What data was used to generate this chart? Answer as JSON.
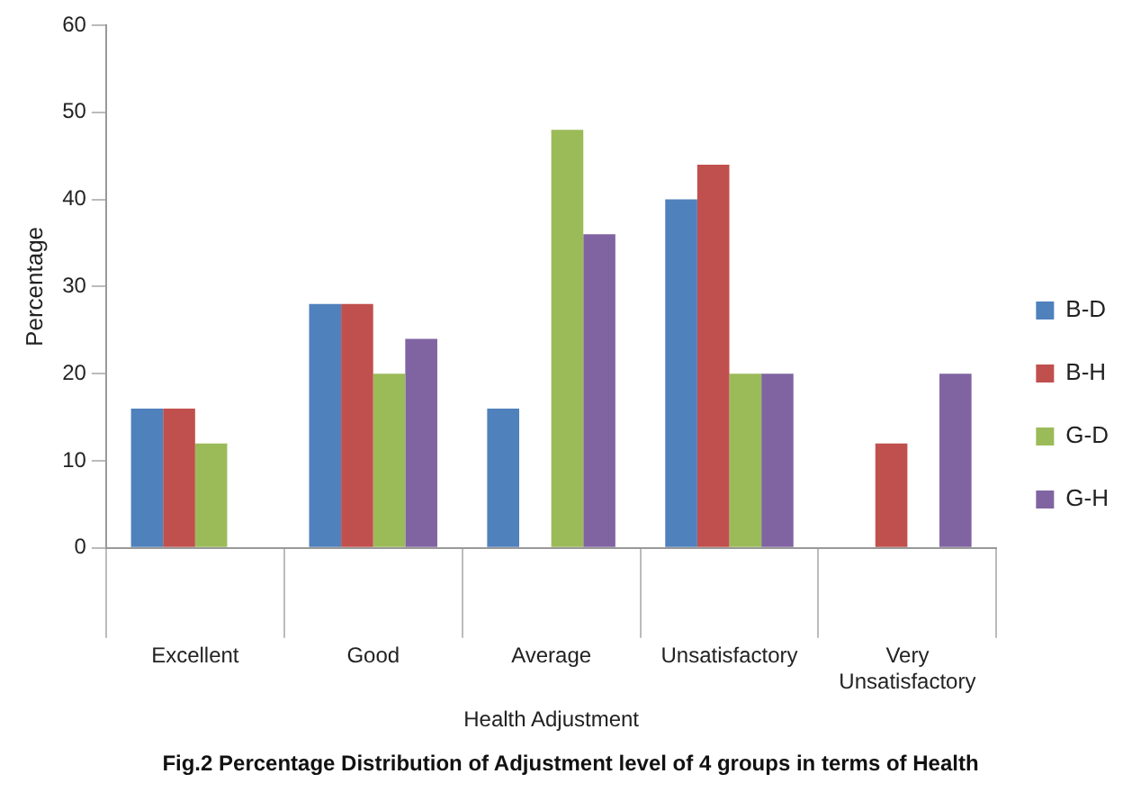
{
  "chart_data": {
    "type": "bar",
    "title": "Fig.2 Percentage Distribution of Adjustment level of 4 groups in terms of Health",
    "xlabel": "Health Adjustment",
    "ylabel": "Percentage",
    "categories": [
      "Excellent",
      "Good",
      "Average",
      "Unsatisfactory",
      "Very Unsatisfactory"
    ],
    "series": [
      {
        "name": "B-D",
        "color": "#4f81bd",
        "values": [
          16,
          28,
          16,
          40,
          0
        ]
      },
      {
        "name": "B-H",
        "color": "#c0504d",
        "values": [
          16,
          28,
          0,
          44,
          12
        ]
      },
      {
        "name": "G-D",
        "color": "#9bbb59",
        "values": [
          12,
          20,
          48,
          20,
          0
        ]
      },
      {
        "name": "G-H",
        "color": "#8064a2",
        "values": [
          0,
          24,
          36,
          20,
          20
        ]
      }
    ],
    "ylim": [
      0,
      60
    ],
    "yticks": [
      0,
      10,
      20,
      30,
      40,
      50,
      60
    ],
    "grid": false,
    "legend": "right"
  }
}
